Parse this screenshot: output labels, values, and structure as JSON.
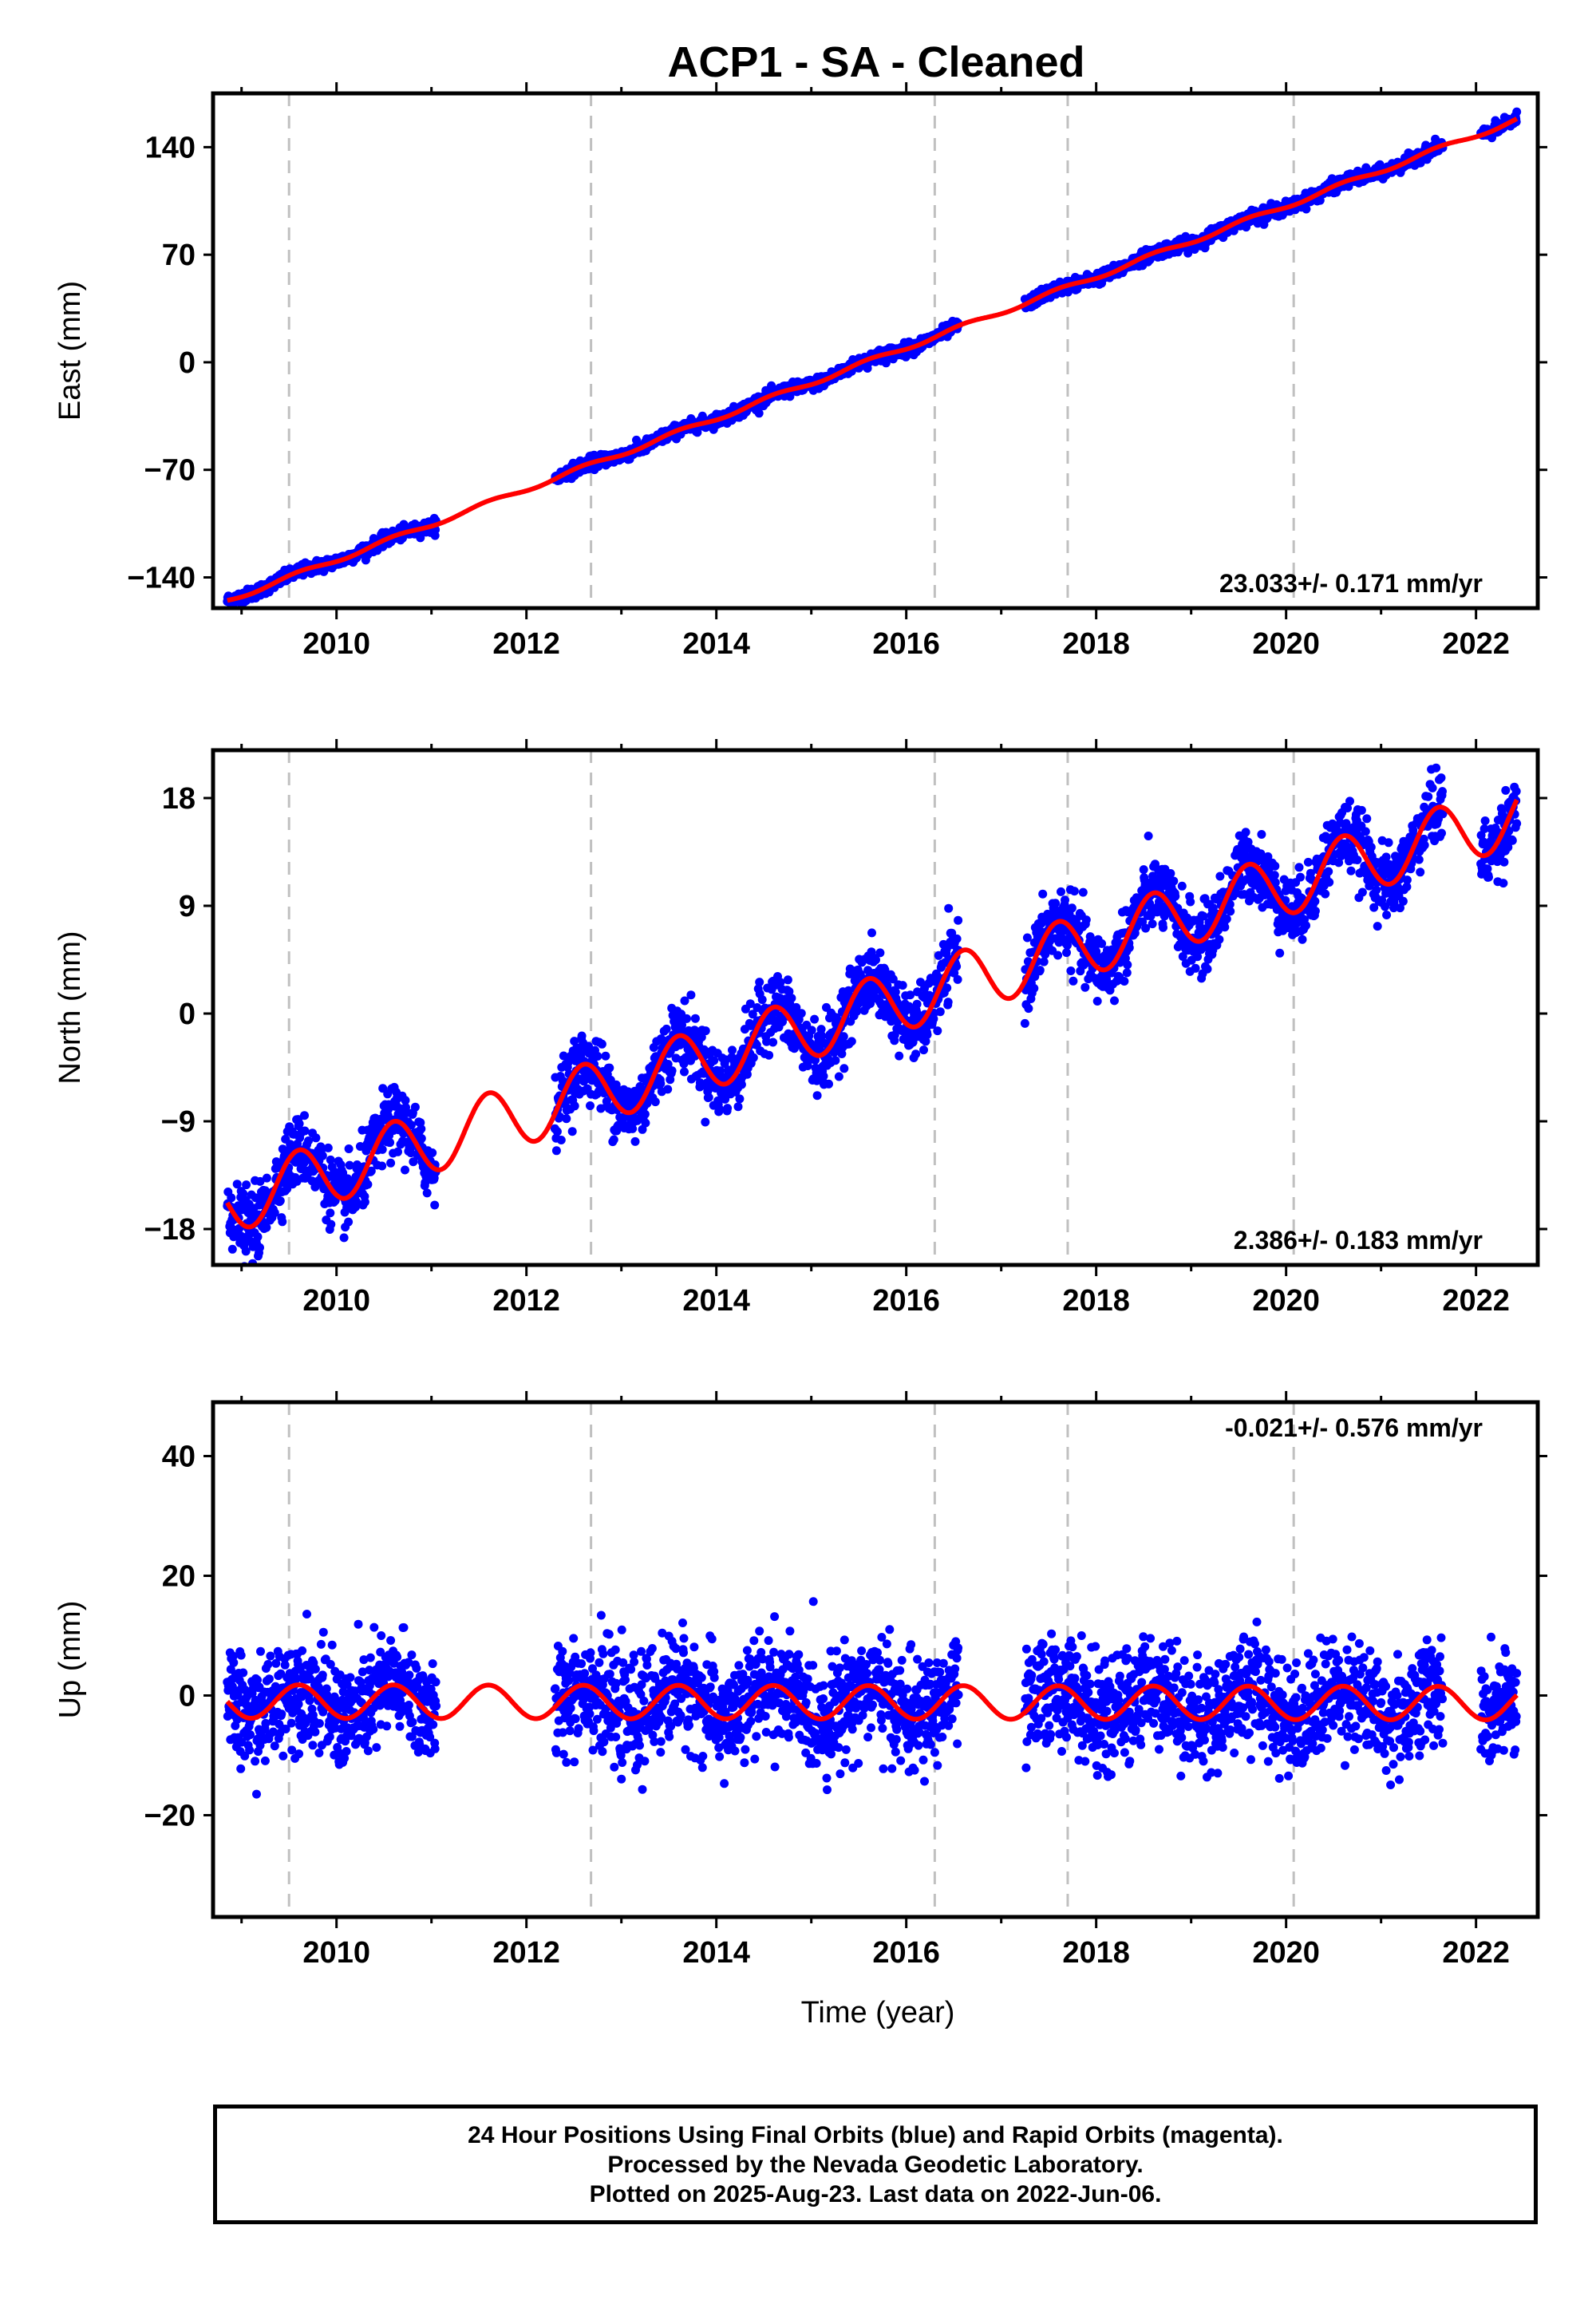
{
  "title": "ACP1  - SA - Cleaned",
  "xlabel": "Time (year)",
  "colors": {
    "final_orbit_points": "#0000ff",
    "model_curve": "#ff0000",
    "steps": "#c0c0c0"
  },
  "footer": {
    "line1": "24 Hour Positions Using Final Orbits (blue) and Rapid Orbits (magenta).",
    "line2": "Processed by the Nevada Geodetic Laboratory.",
    "line3": "Plotted on 2025-Aug-23. Last data on 2022-Jun-06."
  },
  "chart_data": [
    {
      "type": "scatter",
      "ylabel": "East (mm)",
      "rate_label": "23.033+/- 0.171 mm/yr",
      "rate_position": "bottom-right",
      "xlim": [
        2008.7,
        2022.65
      ],
      "ylim": [
        -160,
        175
      ],
      "yticks": [
        -140,
        -70,
        0,
        70,
        140
      ],
      "xticks": [
        2010,
        2012,
        2014,
        2016,
        2018,
        2020,
        2022
      ],
      "step_lines": [
        2009.5,
        2012.68,
        2016.3,
        2017.7,
        2020.08
      ],
      "data_segments": [
        [
          2008.85,
          2011.05
        ],
        [
          2012.3,
          2016.55
        ],
        [
          2017.25,
          2021.65
        ],
        [
          2022.05,
          2022.43
        ]
      ],
      "model": {
        "intercept_year": 2008.85,
        "intercept": -155,
        "rate": 23.033,
        "annual_amplitude": 1.5,
        "noise": 2.0
      },
      "series": [
        {
          "name": "Final Orbits",
          "role": "observations"
        },
        {
          "name": "Model",
          "role": "fit"
        }
      ]
    },
    {
      "type": "scatter",
      "ylabel": "North (mm)",
      "rate_label": "2.386+/- 0.183 mm/yr",
      "rate_position": "bottom-right",
      "xlim": [
        2008.7,
        2022.65
      ],
      "ylim": [
        -21,
        22
      ],
      "yticks": [
        -18,
        -9,
        0,
        9,
        18
      ],
      "xticks": [
        2010,
        2012,
        2014,
        2016,
        2018,
        2020,
        2022
      ],
      "step_lines": [
        2009.5,
        2012.68,
        2016.3,
        2017.7,
        2020.08
      ],
      "data_segments": [
        [
          2008.85,
          2011.05
        ],
        [
          2012.3,
          2016.55
        ],
        [
          2017.25,
          2021.65
        ],
        [
          2022.05,
          2022.43
        ]
      ],
      "model": {
        "intercept_year": 2008.85,
        "intercept": -15.8,
        "rate": 2.386,
        "annual_amplitude": 2.6,
        "noise": 1.4
      },
      "series": [
        {
          "name": "Final Orbits",
          "role": "observations"
        },
        {
          "name": "Model",
          "role": "fit"
        }
      ]
    },
    {
      "type": "scatter",
      "ylabel": "Up (mm)",
      "rate_label": "-0.021+/- 0.576 mm/yr",
      "rate_position": "top-right",
      "xlim": [
        2008.7,
        2022.65
      ],
      "ylim": [
        -37,
        49
      ],
      "yticks": [
        -20,
        0,
        20,
        40
      ],
      "xticks": [
        2010,
        2012,
        2014,
        2016,
        2018,
        2020,
        2022
      ],
      "step_lines": [
        2009.5,
        2012.68,
        2016.3,
        2017.7,
        2020.08
      ],
      "data_segments": [
        [
          2008.85,
          2011.05
        ],
        [
          2012.3,
          2016.55
        ],
        [
          2017.25,
          2021.65
        ],
        [
          2022.05,
          2022.43
        ]
      ],
      "model": {
        "intercept_year": 2008.85,
        "intercept": -1.0,
        "rate": -0.021,
        "annual_amplitude": 2.8,
        "noise": 4.5
      },
      "series": [
        {
          "name": "Final Orbits",
          "role": "observations"
        },
        {
          "name": "Model",
          "role": "fit"
        }
      ]
    }
  ]
}
